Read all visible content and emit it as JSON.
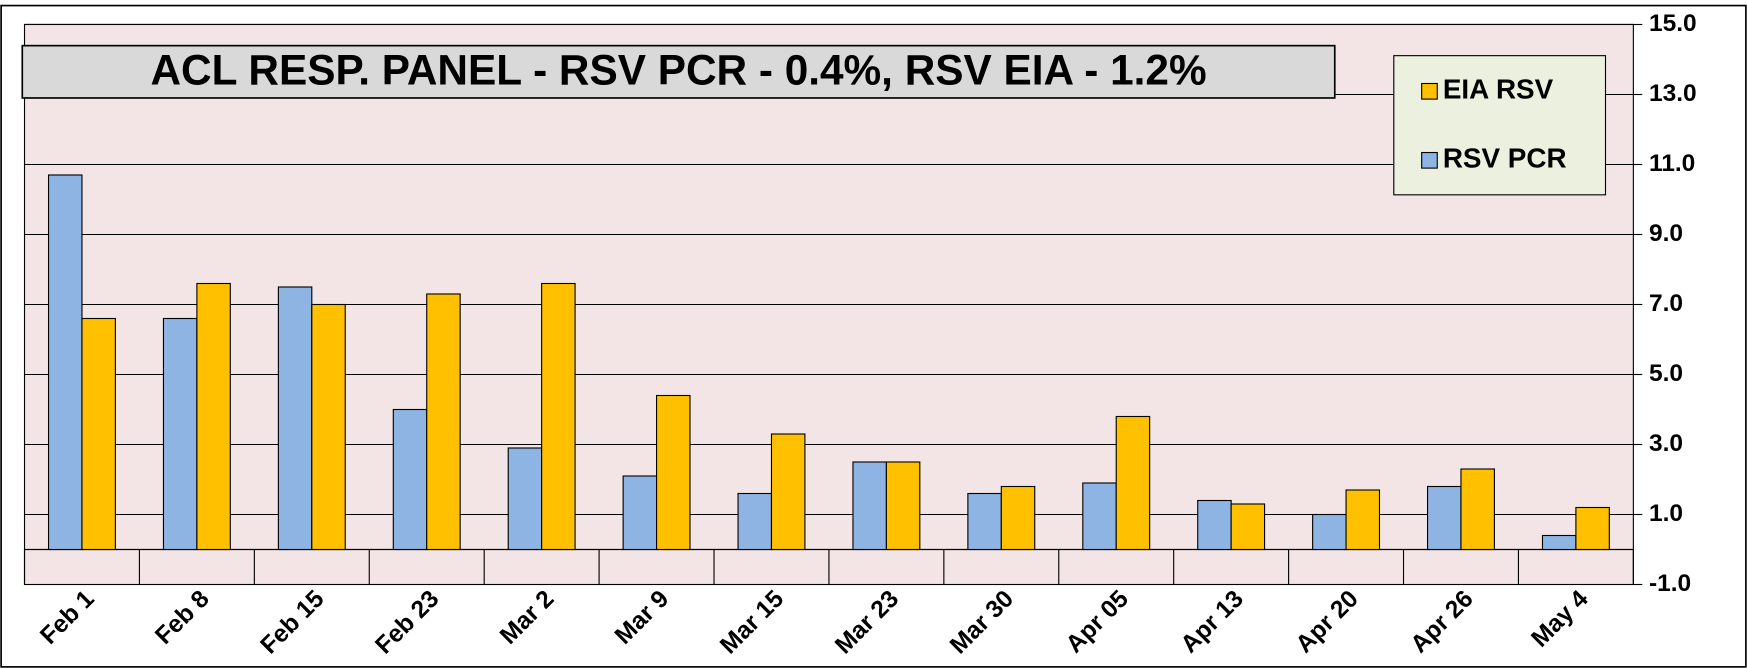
{
  "chart_data": {
    "type": "bar",
    "title": "ACL RESP. PANEL -  RSV PCR - 0.4%, RSV EIA - 1.2%",
    "categories": [
      "Feb 1",
      "Feb 8",
      "Feb 15",
      "Feb 23",
      "Mar 2",
      "Mar 9",
      "Mar 15",
      "Mar 23",
      "Mar 30",
      "Apr 05",
      "Apr 13",
      "Apr 20",
      "Apr 26",
      "May 4"
    ],
    "series": [
      {
        "name": "RSV PCR",
        "color": "#8eb4e3",
        "values": [
          10.7,
          6.6,
          7.5,
          4.0,
          2.9,
          2.1,
          1.6,
          2.5,
          1.6,
          1.9,
          1.4,
          1.0,
          1.8,
          0.4
        ]
      },
      {
        "name": "EIA RSV",
        "color": "#ffc000",
        "values": [
          6.6,
          7.6,
          7.0,
          7.3,
          7.6,
          4.4,
          3.3,
          2.5,
          1.8,
          3.8,
          1.3,
          1.7,
          2.3,
          1.2
        ]
      }
    ],
    "ylim": [
      -1,
      15
    ],
    "yticks": [
      {
        "value": -1,
        "label": "-1.0"
      },
      {
        "value": 1,
        "label": "1.0"
      },
      {
        "value": 3,
        "label": "3.0"
      },
      {
        "value": 5,
        "label": "5.0"
      },
      {
        "value": 7,
        "label": "7.0"
      },
      {
        "value": 9,
        "label": "9.0"
      },
      {
        "value": 11,
        "label": "11.0"
      },
      {
        "value": 13,
        "label": "13.0"
      },
      {
        "value": 15,
        "label": "15.0"
      }
    ],
    "grid": true,
    "legend": "top-right"
  }
}
